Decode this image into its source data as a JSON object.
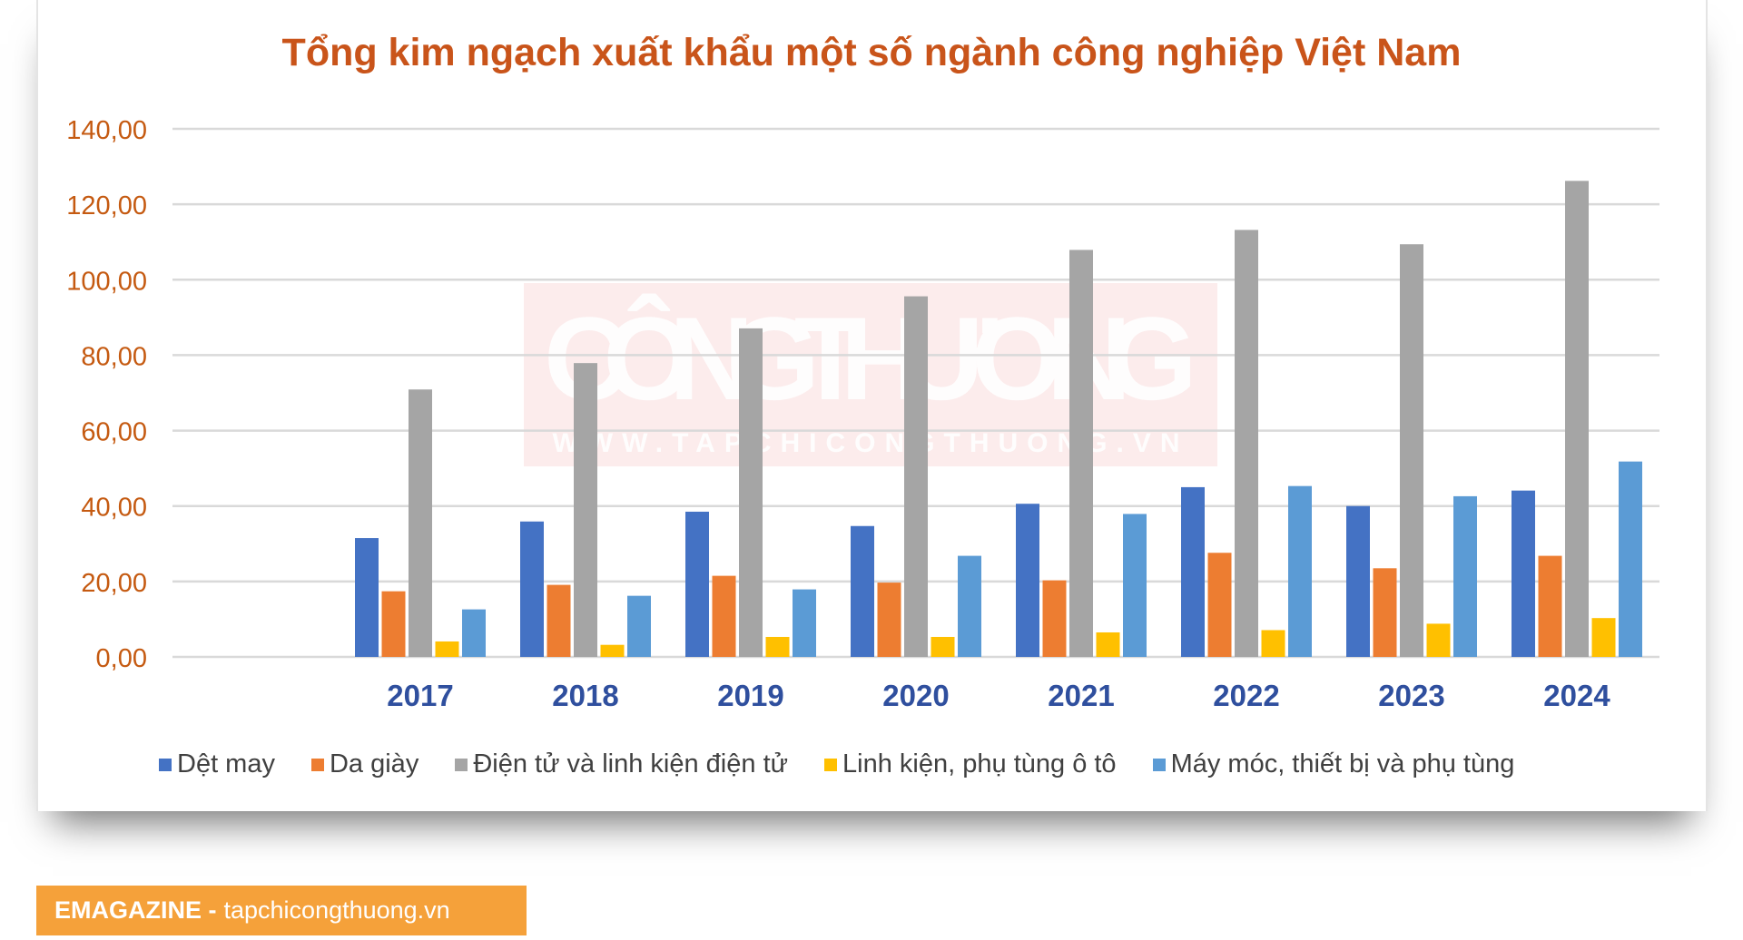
{
  "chart_data": {
    "type": "bar",
    "title": "Tổng kim ngạch xuất khẩu một số ngành công nghiệp Việt Nam",
    "xlabel": "",
    "ylabel": "",
    "ylim": [
      0,
      140
    ],
    "yticks": [
      0,
      20,
      40,
      60,
      80,
      100,
      120,
      140
    ],
    "ytick_labels": [
      "0,00",
      "20,00",
      "40,00",
      "60,00",
      "80,00",
      "100,00",
      "120,00",
      "140,00"
    ],
    "grid": true,
    "legend_position": "bottom",
    "categories": [
      "2017",
      "2018",
      "2019",
      "2020",
      "2021",
      "2022",
      "2023",
      "2024"
    ],
    "series": [
      {
        "name": "Dệt may",
        "color": "#4472c4",
        "values": [
          31.5,
          35.9,
          38.5,
          34.7,
          40.6,
          45.0,
          40.0,
          44.1
        ]
      },
      {
        "name": "Da giày",
        "color": "#ed7d31",
        "values": [
          17.4,
          19.1,
          21.5,
          19.7,
          20.3,
          27.6,
          23.5,
          26.8
        ]
      },
      {
        "name": "Điện tử và linh kiện điện tử",
        "color": "#a5a5a5",
        "values": [
          70.9,
          77.9,
          87.1,
          95.6,
          107.9,
          113.2,
          109.4,
          126.2
        ]
      },
      {
        "name": "Linh kiện, phụ tùng ô tô",
        "color": "#ffc000",
        "values": [
          4.1,
          3.2,
          5.3,
          5.3,
          6.5,
          7.1,
          8.8,
          10.3
        ]
      },
      {
        "name": "Máy móc, thiết bị và phụ tùng",
        "color": "#5b9bd5",
        "values": [
          12.6,
          16.2,
          17.9,
          26.8,
          37.9,
          45.3,
          42.6,
          51.8
        ]
      }
    ]
  },
  "watermark": {
    "main": "CÔNGTHƯƠNG",
    "url": "WWW.TAPCHICONGTHUONG.VN"
  },
  "banner": {
    "brand": "EMAGAZINE -",
    "site": "tapchicongthuong.vn"
  }
}
